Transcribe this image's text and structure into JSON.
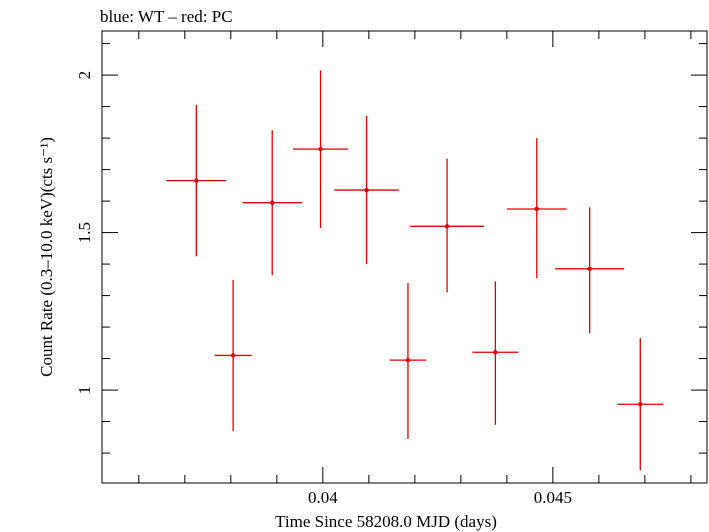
{
  "chart_data": {
    "type": "scatter",
    "title": "blue: WT – red: PC",
    "xlabel": "Time Since 58208.0 MJD (days)",
    "ylabel": "Count Rate (0.3–10.0 keV)(cts s⁻¹)",
    "xlim": [
      0.0352,
      0.04835
    ],
    "ylim": [
      0.705,
      2.14
    ],
    "x_ticks": [
      0.04,
      0.045
    ],
    "x_tick_labels": [
      "0.04",
      "0.045"
    ],
    "y_ticks": [
      1,
      1.5,
      2
    ],
    "y_tick_labels": [
      "1",
      "1.5",
      "2"
    ],
    "grid": false,
    "series": [
      {
        "color": "#e00000",
        "points": [
          {
            "x": 0.03725,
            "y": 1.665,
            "xerr": 0.00065,
            "ylo": 1.425,
            "yhi": 1.905
          },
          {
            "x": 0.03805,
            "y": 1.11,
            "xerr": 0.0004,
            "ylo": 0.87,
            "yhi": 1.35
          },
          {
            "x": 0.0389,
            "y": 1.595,
            "xerr": 0.00065,
            "ylo": 1.365,
            "yhi": 1.825
          },
          {
            "x": 0.03995,
            "y": 1.765,
            "xerr": 0.0006,
            "ylo": 1.515,
            "yhi": 2.015
          },
          {
            "x": 0.04095,
            "y": 1.635,
            "xerr": 0.0007,
            "ylo": 1.4,
            "yhi": 1.87
          },
          {
            "x": 0.04185,
            "y": 1.095,
            "xerr": 0.0004,
            "ylo": 0.845,
            "yhi": 1.34
          },
          {
            "x": 0.0427,
            "y": 1.52,
            "xerr": 0.0008,
            "ylo": 1.31,
            "yhi": 1.735
          },
          {
            "x": 0.04375,
            "y": 1.12,
            "xerr": 0.0005,
            "ylo": 0.89,
            "yhi": 1.345
          },
          {
            "x": 0.04465,
            "y": 1.575,
            "xerr": 0.00065,
            "ylo": 1.355,
            "yhi": 1.8
          },
          {
            "x": 0.0458,
            "y": 1.385,
            "xerr": 0.00075,
            "ylo": 1.18,
            "yhi": 1.58
          },
          {
            "x": 0.0469,
            "y": 0.955,
            "xerr": 0.0005,
            "ylo": 0.745,
            "yhi": 1.165
          }
        ]
      }
    ]
  }
}
